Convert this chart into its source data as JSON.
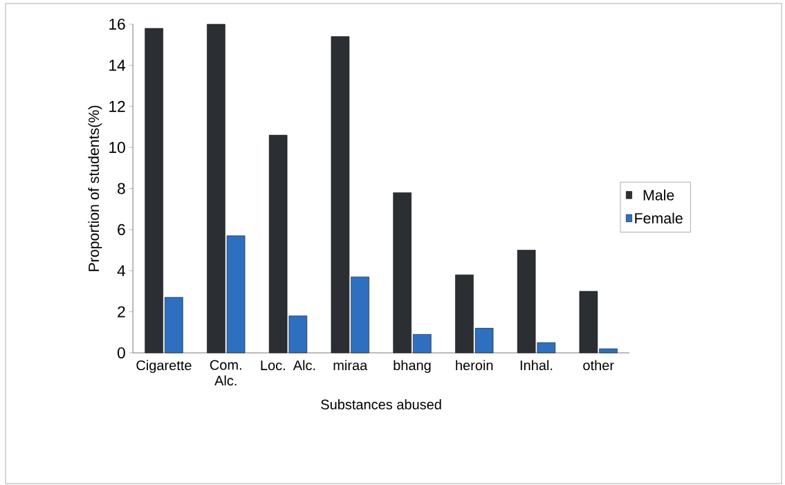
{
  "chart_data": {
    "type": "bar",
    "xlabel": "Substances abused",
    "ylabel": "Proportion of students(%)",
    "categories": [
      "Cigarette",
      "Com. Alc.",
      "Loc. Alc.",
      "miraa",
      "bhang",
      "heroin",
      "Inhal.",
      "other"
    ],
    "series": [
      {
        "name": "Male",
        "color": "#2b2f33",
        "values": [
          15.8,
          16.0,
          10.6,
          15.4,
          7.8,
          3.8,
          5.0,
          3.0
        ]
      },
      {
        "name": "Female",
        "color": "#2f6fbf",
        "values": [
          2.7,
          5.7,
          1.8,
          3.7,
          0.9,
          1.2,
          0.5,
          0.2
        ]
      }
    ],
    "ylim": [
      0,
      16
    ],
    "yticks": [
      0,
      2,
      4,
      6,
      8,
      10,
      12,
      14,
      16
    ],
    "grid": false,
    "legend": "right"
  }
}
